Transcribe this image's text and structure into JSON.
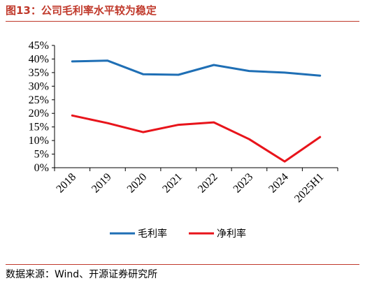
{
  "title": "图13：公司毛利率水平较为稳定",
  "source": "数据来源：Wind、开源证券研究所",
  "chart_data": {
    "type": "line",
    "categories": [
      "2018",
      "2019",
      "2020",
      "2021",
      "2022",
      "2023",
      "2024",
      "2025H1"
    ],
    "y_ticks": [
      "0%",
      "5%",
      "10%",
      "15%",
      "20%",
      "25%",
      "30%",
      "35%",
      "40%",
      "45%"
    ],
    "ylim": [
      0,
      45
    ],
    "legend_position": "bottom",
    "series": [
      {
        "name": "毛利率",
        "color": "#1F6FB5",
        "values": [
          39.1,
          39.4,
          34.4,
          34.2,
          37.8,
          35.6,
          35.0,
          33.9
        ]
      },
      {
        "name": "净利率",
        "color": "#E8141B",
        "values": [
          19.2,
          16.4,
          13.1,
          15.8,
          16.7,
          10.5,
          2.3,
          11.3
        ]
      }
    ]
  }
}
